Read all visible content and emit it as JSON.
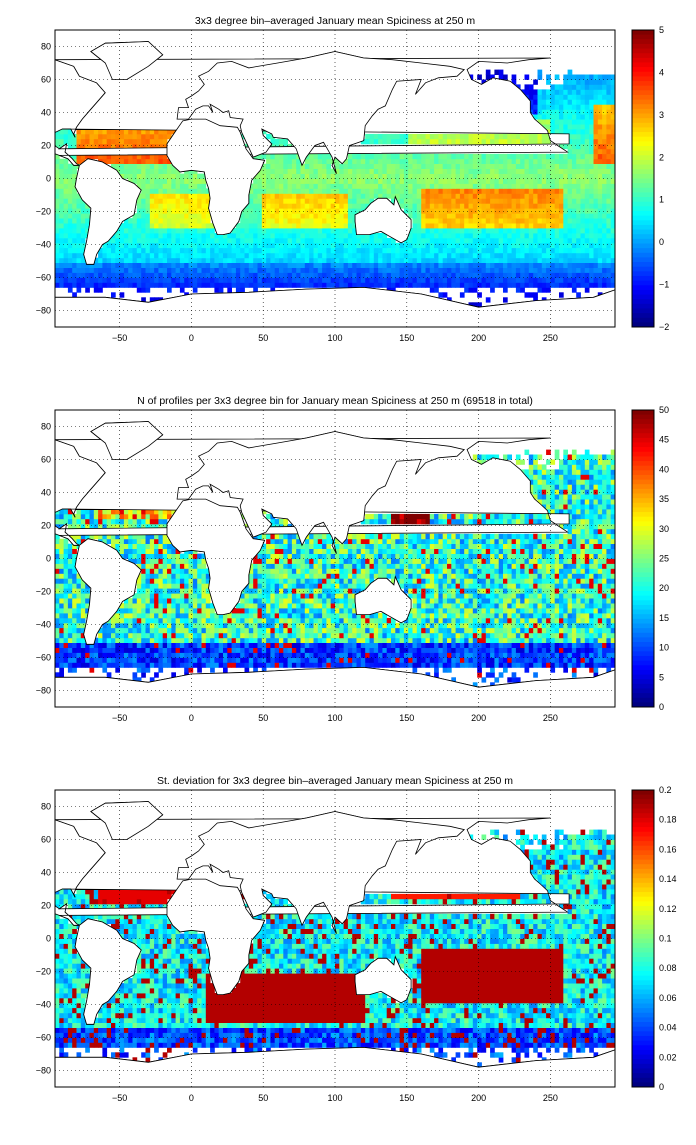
{
  "panels": [
    {
      "title": "3x3 degree bin–averaged January mean Spiciness at 250 m",
      "colorbar_ticks": [
        "5",
        "4",
        "3",
        "2",
        "1",
        "0",
        "−1",
        "−2"
      ],
      "colorbar_range": [
        -2,
        5
      ],
      "field": "spice"
    },
    {
      "title": "N of profiles per 3x3 degree bin for January mean Spiciness at 250 m (69518 in total)",
      "colorbar_ticks": [
        "50",
        "45",
        "40",
        "35",
        "30",
        "25",
        "20",
        "15",
        "10",
        "5",
        "0"
      ],
      "colorbar_range": [
        0,
        50
      ],
      "field": "count"
    },
    {
      "title": "St. deviation for 3x3 degree bin–averaged January mean Spiciness at 250 m",
      "colorbar_ticks": [
        "0.2",
        "0.18",
        "0.16",
        "0.14",
        "0.12",
        "0.1",
        "0.08",
        "0.06",
        "0.04",
        "0.02",
        "0"
      ],
      "colorbar_range": [
        0,
        0.2
      ],
      "field": "std"
    }
  ],
  "axes": {
    "x_ticks": [
      "−50",
      "0",
      "50",
      "100",
      "150",
      "200",
      "250"
    ],
    "x_tick_values": [
      -50,
      0,
      50,
      100,
      150,
      200,
      250
    ],
    "y_ticks": [
      "80",
      "60",
      "40",
      "20",
      "0",
      "−20",
      "−40",
      "−60",
      "−80"
    ],
    "y_tick_values": [
      80,
      60,
      40,
      20,
      0,
      -20,
      -40,
      -60,
      -80
    ],
    "xlim": [
      -95,
      295
    ],
    "ylim": [
      -90,
      90
    ],
    "grid": "dotted"
  },
  "colormap": "jet"
}
